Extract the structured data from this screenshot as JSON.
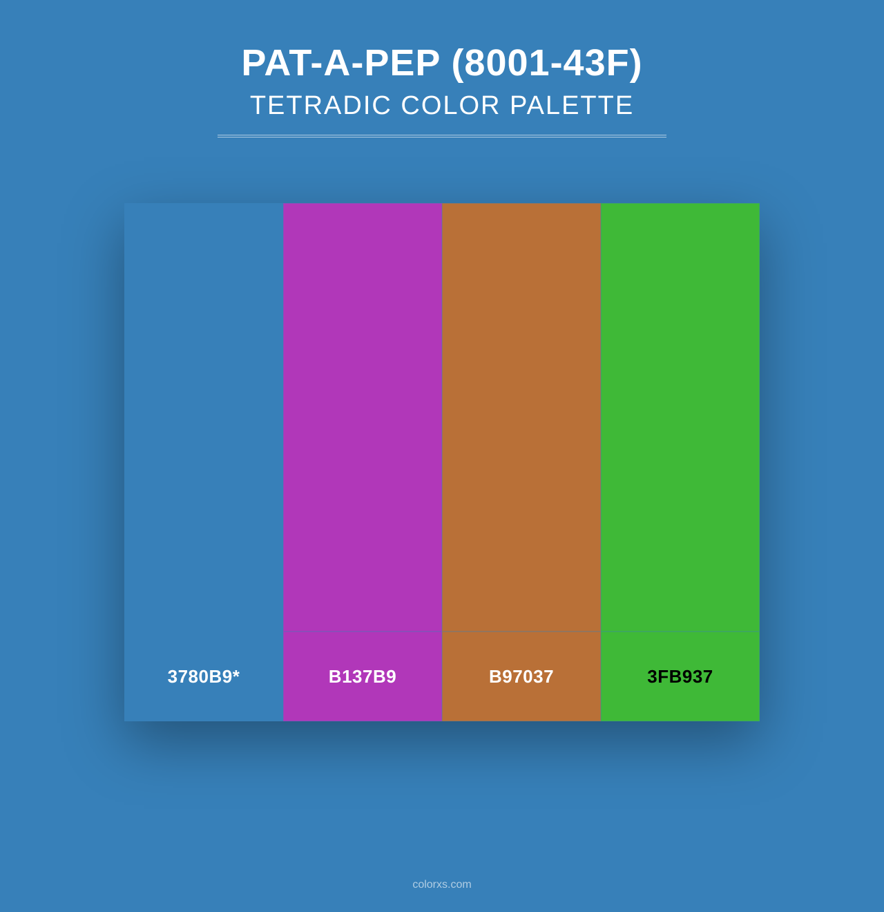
{
  "background_color": "#3780b9",
  "header": {
    "title": "PAT-A-PEP (8001-43F)",
    "subtitle": "TETRADIC COLOR PALETTE",
    "text_color": "#ffffff",
    "title_fontsize": 54,
    "subtitle_fontsize": 38,
    "rule_color": "rgba(255,255,255,0.6)",
    "rule_width": 650
  },
  "palette": {
    "type": "swatch-grid",
    "swatch_height": 620,
    "label_height": 130,
    "container_width": 920,
    "shadow": "0 30px 80px rgba(0,0,0,0.35)",
    "swatches": [
      {
        "hex": "#3780b9",
        "label": "3780B9*",
        "label_color": "#ffffff"
      },
      {
        "hex": "#b137b9",
        "label": "B137B9",
        "label_color": "#ffffff"
      },
      {
        "hex": "#b97037",
        "label": "B97037",
        "label_color": "#ffffff"
      },
      {
        "hex": "#3fb937",
        "label": "3FB937",
        "label_color": "#000000"
      }
    ],
    "label_fontsize": 26,
    "label_fontweight": 700
  },
  "footer": {
    "text": "colorxs.com",
    "color": "rgba(255,255,255,0.6)",
    "fontsize": 16
  }
}
